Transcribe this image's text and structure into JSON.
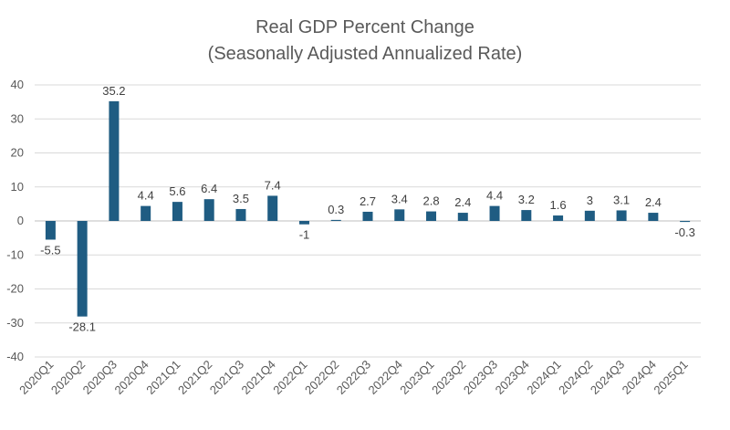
{
  "chart_data": {
    "type": "bar",
    "title": "Real GDP Percent Change",
    "subtitle": "(Seasonally Adjusted Annualized Rate)",
    "xlabel": "",
    "ylabel": "",
    "ylim": [
      -40,
      40
    ],
    "yticks": [
      40,
      30,
      20,
      10,
      0,
      -10,
      -20,
      -30,
      -40
    ],
    "grid": true,
    "legend": "none",
    "bar_color": "#1f5c82",
    "categories": [
      "2020Q1",
      "2020Q2",
      "2020Q3",
      "2020Q4",
      "2021Q1",
      "2021Q2",
      "2021Q3",
      "2021Q4",
      "2022Q1",
      "2022Q2",
      "2022Q3",
      "2022Q4",
      "2023Q1",
      "2023Q2",
      "2023Q3",
      "2023Q4",
      "2024Q1",
      "2024Q2",
      "2024Q3",
      "2024Q4",
      "2025Q1"
    ],
    "values": [
      -5.5,
      -28.1,
      35.2,
      4.4,
      5.6,
      6.4,
      3.5,
      7.4,
      -1,
      0.3,
      2.7,
      3.4,
      2.8,
      2.4,
      4.4,
      3.2,
      1.6,
      3,
      3.1,
      2.4,
      -0.3
    ],
    "value_labels": [
      "-5.5",
      "-28.1",
      "35.2",
      "4.4",
      "5.6",
      "6.4",
      "3.5",
      "7.4",
      "-1",
      "0.3",
      "2.7",
      "3.4",
      "2.8",
      "2.4",
      "4.4",
      "3.2",
      "1.6",
      "3",
      "3.1",
      "2.4",
      "-0.3"
    ]
  }
}
